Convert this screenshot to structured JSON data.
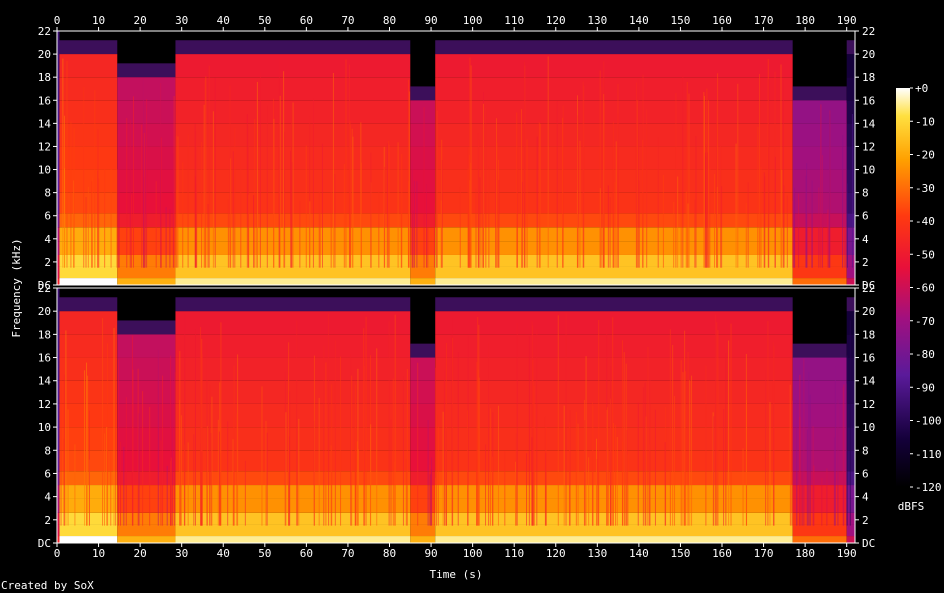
{
  "chart_data": {
    "type": "heatmap",
    "title": "",
    "xlabel": "Time (s)",
    "ylabel": "Frequency (kHz)",
    "xlim": [
      0,
      192
    ],
    "ylim": [
      0,
      22
    ],
    "x_ticks": [
      0,
      10,
      20,
      30,
      40,
      50,
      60,
      70,
      80,
      90,
      100,
      110,
      120,
      130,
      140,
      150,
      160,
      170,
      180,
      190
    ],
    "y_tick_labels": [
      "DC",
      "2",
      "4",
      "6",
      "8",
      "10",
      "12",
      "14",
      "16",
      "18",
      "20",
      "22"
    ],
    "channels": 2,
    "colorbar": {
      "label": "dBFS",
      "ticks": [
        "+0",
        "-10",
        "-20",
        "-30",
        "-40",
        "-50",
        "-60",
        "-70",
        "-80",
        "-90",
        "-100",
        "-110",
        "-120"
      ],
      "range": [
        -120,
        0
      ]
    },
    "segments": [
      {
        "t0": 0,
        "t1": 0.6,
        "cutoff_khz": 22,
        "level": 0.3
      },
      {
        "t0": 0.6,
        "t1": 14.5,
        "cutoff_khz": 20,
        "level": 0.7
      },
      {
        "t0": 14.5,
        "t1": 28.5,
        "cutoff_khz": 18,
        "level": 0.55
      },
      {
        "t0": 28.5,
        "t1": 85,
        "cutoff_khz": 20,
        "level": 0.66
      },
      {
        "t0": 85,
        "t1": 91,
        "cutoff_khz": 16,
        "level": 0.55
      },
      {
        "t0": 91,
        "t1": 177,
        "cutoff_khz": 20,
        "level": 0.66
      },
      {
        "t0": 177,
        "t1": 190,
        "cutoff_khz": 16,
        "level": 0.45
      },
      {
        "t0": 190,
        "t1": 192,
        "cutoff_khz": 20,
        "level": 0.2
      }
    ],
    "footer": "Created by SoX"
  }
}
